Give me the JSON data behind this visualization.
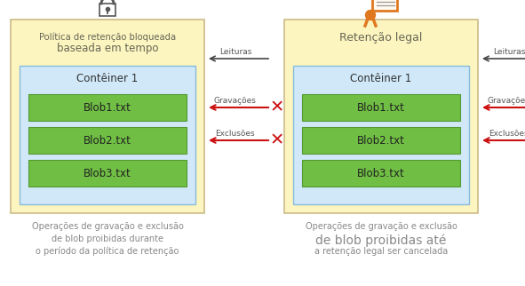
{
  "bg_color": "#ffffff",
  "yellow_bg": "#fdf5c0",
  "blue_bg": "#d0e8f8",
  "green_blob": "#70bf44",
  "green_edge": "#559933",
  "arrow_dark": "#444444",
  "red_color": "#cc1111",
  "left_panel": {
    "title_line1": "Política de retenção bloqueada",
    "title_line2": "baseada em tempo",
    "container_label": "Contêiner 1",
    "blobs": [
      "Blob1.txt",
      "Blob2.txt",
      "Blob3.txt"
    ],
    "caption": [
      "Operações de gravação e exclusão",
      "de blob proibidas durante",
      "o período da política de retenção"
    ],
    "caption_sizes": [
      7.0,
      7.0,
      7.0
    ]
  },
  "right_panel": {
    "title_line1": "Retenção legal",
    "container_label": "Contêiner 1",
    "blobs": [
      "Blob1.txt",
      "Blob2.txt",
      "Blob3.txt"
    ],
    "caption": [
      "Operações de gravação e exclusão",
      "de blob proibidas até",
      "a retenção legal ser cancelada"
    ],
    "caption_sizes": [
      7.0,
      10.0,
      7.0
    ]
  },
  "arrow_labels": [
    "Leituras",
    "Gravações",
    "Exclusões"
  ]
}
